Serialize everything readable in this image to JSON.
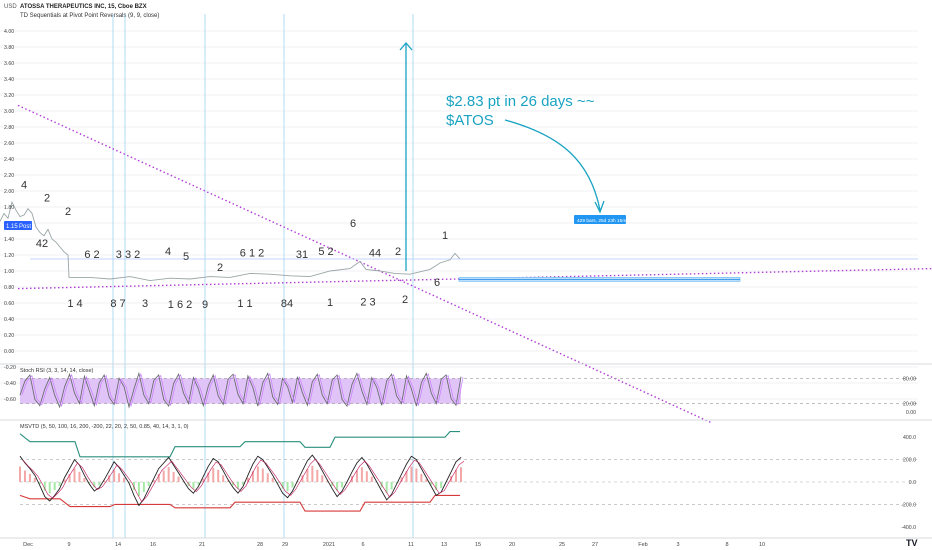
{
  "header": {
    "currency": "USD",
    "title": "ATOSSA THERAPEUTICS INC, 15, Cboe BZX",
    "indicator": "TD Sequentials at Pivot Point Reversals (9, 9, close)"
  },
  "price_tag": {
    "value": "1.15",
    "label": "Post"
  },
  "annotation": {
    "line1": "$2.83 pt in 26 days ~~",
    "line2": "$ATOS"
  },
  "measure_label": "429 bars, 25d 23h 15m",
  "stoch_label": "Stoch RSI (3, 3, 14, 14, close)",
  "msvtd_label": "MSVTD (5, 50, 100, 16, 200, -200, 22, 20, 2, 50, 0.85, 40, 14, 3, 1, 0)",
  "watermark": "TV",
  "colors": {
    "price": "#9aa6a6",
    "magenta": "#b13dd6",
    "cyan": "#1aa3c2",
    "stoch_fill": "#e1c4f7",
    "stoch_line": "#6b6b73",
    "teal": "#2b8f7d",
    "red": "#d63a3a",
    "gray": "#9aa0a6"
  },
  "chart_data": [
    {
      "type": "line",
      "title": "ATOSSA THERAPEUTICS INC, 15, Cboe BZX",
      "ylim": [
        -0.7,
        4.1
      ],
      "y_ticks": [
        "4.00",
        "3.80",
        "3.60",
        "3.40",
        "3.20",
        "3.00",
        "2.80",
        "2.60",
        "2.40",
        "2.20",
        "2.00",
        "1.80",
        "1.60",
        "1.40",
        "1.20",
        "1.00",
        "0.80",
        "0.60",
        "0.40",
        "0.20",
        "0.00",
        "-0.20",
        "-0.40",
        "-0.60"
      ],
      "x_ticks": [
        "Dec",
        "9",
        "14",
        "16",
        "21",
        "28",
        "29",
        "2021",
        "6",
        "11",
        "13",
        "15",
        "20",
        "25",
        "27",
        "Feb",
        "3",
        "8",
        "10"
      ],
      "current_price": 1.15,
      "price_series": [
        [
          0,
          1.62
        ],
        [
          4,
          1.72
        ],
        [
          8,
          1.66
        ],
        [
          12,
          1.86
        ],
        [
          16,
          1.76
        ],
        [
          20,
          1.68
        ],
        [
          24,
          1.7
        ],
        [
          28,
          1.78
        ],
        [
          32,
          1.72
        ],
        [
          36,
          1.55
        ],
        [
          40,
          1.48
        ],
        [
          44,
          1.44
        ],
        [
          48,
          1.52
        ],
        [
          52,
          1.4
        ],
        [
          56,
          1.36
        ],
        [
          60,
          1.3
        ],
        [
          64,
          1.24
        ],
        [
          68,
          1.2
        ],
        [
          69,
          0.92
        ],
        [
          90,
          0.92
        ],
        [
          110,
          0.9
        ],
        [
          130,
          0.93
        ],
        [
          150,
          0.88
        ],
        [
          170,
          0.91
        ],
        [
          190,
          0.9
        ],
        [
          210,
          0.93
        ],
        [
          230,
          0.92
        ],
        [
          250,
          0.97
        ],
        [
          270,
          0.96
        ],
        [
          290,
          0.94
        ],
        [
          310,
          0.93
        ],
        [
          330,
          1.0
        ],
        [
          350,
          1.03
        ],
        [
          360,
          1.12
        ],
        [
          366,
          1.02
        ],
        [
          380,
          1.0
        ],
        [
          395,
          0.97
        ],
        [
          410,
          0.96
        ],
        [
          420,
          0.99
        ],
        [
          430,
          1.02
        ],
        [
          440,
          1.1
        ],
        [
          450,
          1.14
        ],
        [
          455,
          1.22
        ],
        [
          460,
          1.15
        ]
      ],
      "td_labels_top": [
        {
          "x": 24,
          "y": 2.03,
          "t": "4"
        },
        {
          "x": 47,
          "y": 1.87,
          "t": "2"
        },
        {
          "x": 68,
          "y": 1.7,
          "t": "2"
        },
        {
          "x": 42,
          "y": 1.3,
          "t": "42"
        },
        {
          "x": 92,
          "y": 1.16,
          "t": "6 2"
        },
        {
          "x": 128,
          "y": 1.16,
          "t": "3 3 2"
        },
        {
          "x": 168,
          "y": 1.2,
          "t": "4"
        },
        {
          "x": 186,
          "y": 1.14,
          "t": "5"
        },
        {
          "x": 220,
          "y": 1.0,
          "t": "2"
        },
        {
          "x": 252,
          "y": 1.18,
          "t": "6 1 2"
        },
        {
          "x": 302,
          "y": 1.16,
          "t": "31"
        },
        {
          "x": 326,
          "y": 1.2,
          "t": "5 2"
        },
        {
          "x": 353,
          "y": 1.55,
          "t": "6"
        },
        {
          "x": 375,
          "y": 1.18,
          "t": "44"
        },
        {
          "x": 398,
          "y": 1.2,
          "t": "2"
        },
        {
          "x": 445,
          "y": 1.4,
          "t": "1"
        }
      ],
      "td_labels_bottom": [
        {
          "x": 75,
          "y": 0.55,
          "t": "1 4"
        },
        {
          "x": 118,
          "y": 0.55,
          "t": "8 7"
        },
        {
          "x": 145,
          "y": 0.55,
          "t": "3"
        },
        {
          "x": 180,
          "y": 0.54,
          "t": "1 6 2"
        },
        {
          "x": 205,
          "y": 0.54,
          "t": "9"
        },
        {
          "x": 245,
          "y": 0.55,
          "t": "1 1"
        },
        {
          "x": 287,
          "y": 0.55,
          "t": "84"
        },
        {
          "x": 330,
          "y": 0.56,
          "t": "1"
        },
        {
          "x": 368,
          "y": 0.57,
          "t": "2 3"
        },
        {
          "x": 405,
          "y": 0.6,
          "t": "2"
        },
        {
          "x": 437,
          "y": 0.81,
          "t": "6"
        }
      ],
      "trendline_down": [
        [
          18,
          3.07
        ],
        [
          712,
          -0.9
        ]
      ],
      "trendline_flat": [
        [
          18,
          0.78
        ],
        [
          932,
          1.03
        ]
      ],
      "arrow": {
        "x": 406,
        "from": 1.0,
        "to": 3.85
      },
      "measure_box": [
        459,
        0.9,
        740,
        0.92
      ],
      "target_price": 1.0,
      "vertical_lines_x": [
        113,
        125,
        205,
        284,
        413
      ]
    },
    {
      "type": "area",
      "title": "Stoch RSI (3, 3, 14, 14, close)",
      "ylim": [
        -10,
        100
      ],
      "y_ticks": [
        "80.00",
        "20.00",
        "0.00"
      ],
      "band": [
        20,
        80
      ],
      "series": [
        {
          "values": [
            40,
            74,
            88,
            30,
            15,
            55,
            82,
            40,
            12,
            60,
            90,
            45,
            20,
            85,
            50,
            15,
            70,
            88,
            35,
            18,
            80,
            60,
            12,
            55,
            92,
            40,
            20,
            75,
            88,
            30,
            14,
            68,
            90,
            45,
            20,
            82,
            55,
            15,
            62,
            88,
            38,
            18,
            78,
            90,
            42,
            20,
            86,
            58,
            14,
            70,
            92,
            36,
            18,
            80,
            60,
            22,
            84,
            46,
            16,
            72,
            90,
            40,
            20,
            76,
            88,
            30,
            14,
            66,
            92,
            50,
            18,
            82,
            58,
            16,
            74,
            90,
            38,
            20,
            86,
            55,
            14,
            70,
            92,
            45,
            20,
            78,
            88,
            32,
            16,
            84
          ]
        }
      ]
    },
    {
      "type": "line",
      "title": "MSVTD (5, 50, 100, 16, 200, -200, 22, 20, 2, 50, 0.85, 40, 14, 3, 1, 0)",
      "ylim": [
        -500,
        500
      ],
      "y_ticks": [
        "400.0",
        "200.0",
        "0.0",
        "-200.0",
        "-400.0"
      ],
      "upper_step": [
        [
          20,
          430
        ],
        [
          30,
          360
        ],
        [
          75,
          360
        ],
        [
          80,
          225
        ],
        [
          170,
          225
        ],
        [
          175,
          315
        ],
        [
          240,
          315
        ],
        [
          245,
          360
        ],
        [
          300,
          360
        ],
        [
          305,
          310
        ],
        [
          330,
          310
        ],
        [
          335,
          400
        ],
        [
          445,
          400
        ],
        [
          450,
          450
        ],
        [
          460,
          450
        ]
      ],
      "lower_step": [
        [
          20,
          -120
        ],
        [
          30,
          -150
        ],
        [
          60,
          -150
        ],
        [
          70,
          -220
        ],
        [
          110,
          -220
        ],
        [
          115,
          -200
        ],
        [
          170,
          -200
        ],
        [
          175,
          -230
        ],
        [
          230,
          -230
        ],
        [
          235,
          -180
        ],
        [
          300,
          -180
        ],
        [
          305,
          -260
        ],
        [
          360,
          -260
        ],
        [
          365,
          -180
        ],
        [
          430,
          -180
        ],
        [
          435,
          -120
        ],
        [
          460,
          -120
        ]
      ],
      "oscillator": [
        230,
        170,
        120,
        60,
        -30,
        -130,
        -170,
        -120,
        -60,
        40,
        120,
        200,
        150,
        60,
        -20,
        -80,
        -50,
        20,
        100,
        180,
        130,
        60,
        -10,
        -120,
        -210,
        -150,
        -60,
        30,
        120,
        170,
        220,
        150,
        80,
        10,
        -60,
        -100,
        -40,
        50,
        140,
        210,
        180,
        100,
        20,
        -50,
        -100,
        -40,
        60,
        160,
        230,
        200,
        130,
        60,
        -20,
        -100,
        -140,
        -80,
        10,
        100,
        190,
        240,
        180,
        100,
        20,
        -60,
        -130,
        -80,
        0,
        90,
        170,
        220,
        160,
        80,
        0,
        -80,
        -160,
        -110,
        -20,
        70,
        160,
        230,
        200,
        120,
        40,
        -40,
        -120,
        -90,
        0,
        90,
        180,
        220
      ]
    }
  ]
}
